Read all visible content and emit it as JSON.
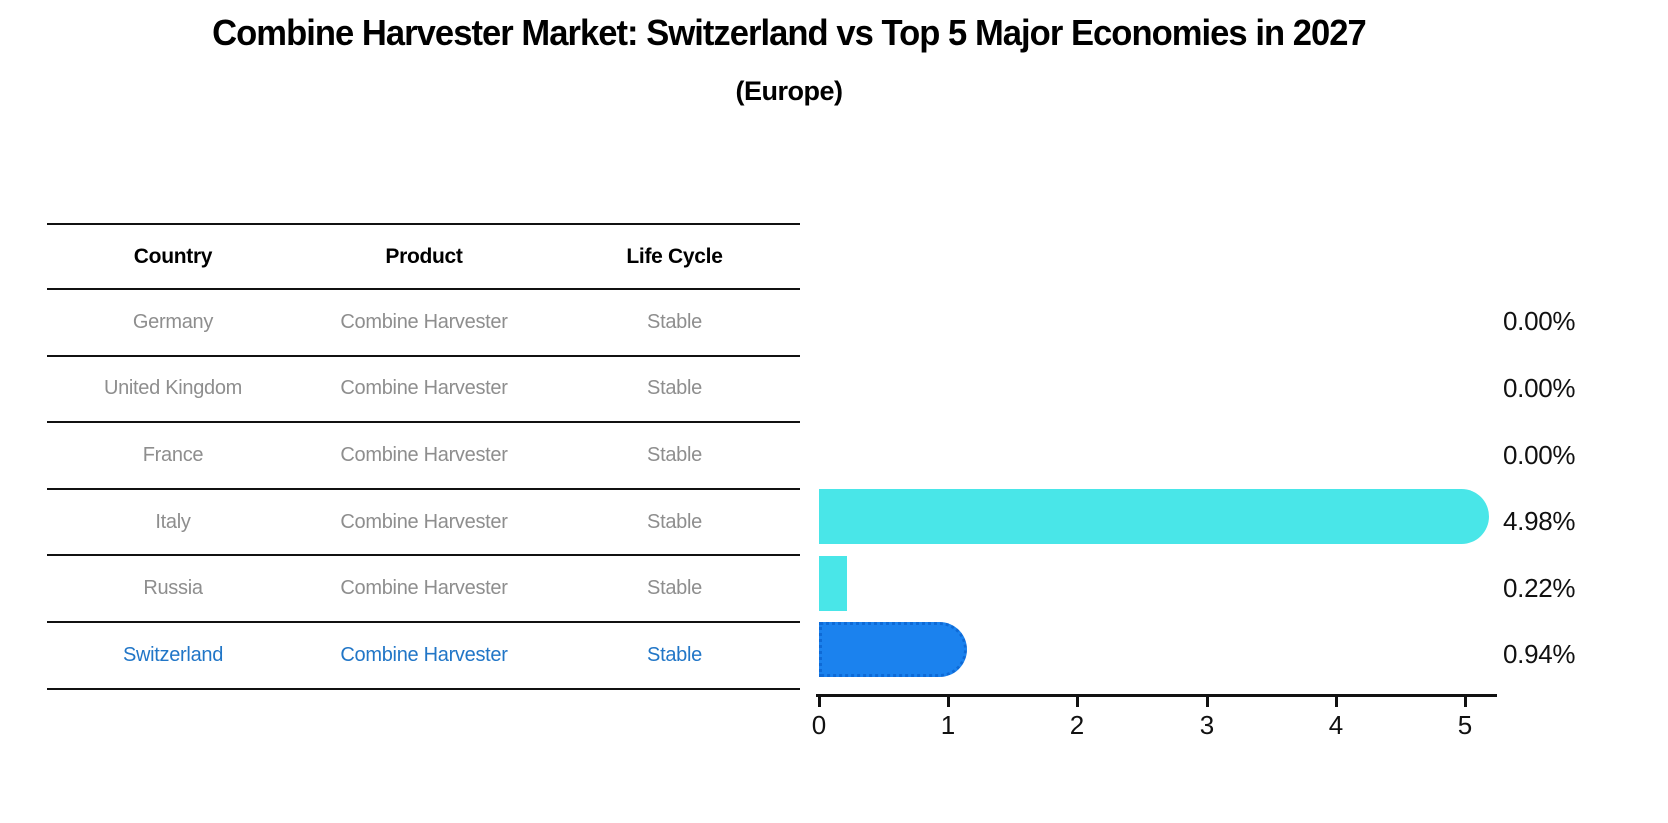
{
  "header": {
    "title": "Combine Harvester Market: Switzerland vs Top 5 Major Economies in 2027",
    "subtitle": "(Europe)"
  },
  "colors": {
    "cyan": "#49E6E8",
    "blue": "#1B82EE",
    "blue-border": "#0E6AD6",
    "highlight-text": "#2176C7",
    "gray-text": "#8E8E8E"
  },
  "table": {
    "headers": [
      "Country",
      "Product",
      "Life Cycle"
    ],
    "rows": [
      {
        "country": "Germany",
        "product": "Combine Harvester",
        "life_cycle": "Stable"
      },
      {
        "country": "United Kingdom",
        "product": "Combine Harvester",
        "life_cycle": "Stable"
      },
      {
        "country": "France",
        "product": "Combine Harvester",
        "life_cycle": "Stable"
      },
      {
        "country": "Italy",
        "product": "Combine Harvester",
        "life_cycle": "Stable"
      },
      {
        "country": "Russia",
        "product": "Combine Harvester",
        "life_cycle": "Stable"
      },
      {
        "country": "Switzerland",
        "product": "Combine Harvester",
        "life_cycle": "Stable",
        "highlighted": true
      }
    ]
  },
  "chart_data": {
    "type": "bar",
    "orientation": "horizontal",
    "categories": [
      "Germany",
      "United Kingdom",
      "France",
      "Italy",
      "Russia",
      "Switzerland"
    ],
    "values": [
      0.0,
      0.0,
      0.0,
      4.98,
      0.22,
      0.94
    ],
    "value_labels": [
      "0.00%",
      "0.00%",
      "0.00%",
      "4.98%",
      "0.22%",
      "0.94%"
    ],
    "x_ticks": [
      "0",
      "1",
      "2",
      "3",
      "4",
      "5"
    ],
    "xlim": [
      0,
      5.25
    ],
    "grid": false,
    "legend": false,
    "highlighted_category": "Switzerland",
    "bars": [
      {
        "index": 3,
        "color": "cyan",
        "rounded": true
      },
      {
        "index": 4,
        "color": "cyan",
        "rounded": false
      },
      {
        "index": 5,
        "color": "blue",
        "rounded": true
      }
    ]
  }
}
